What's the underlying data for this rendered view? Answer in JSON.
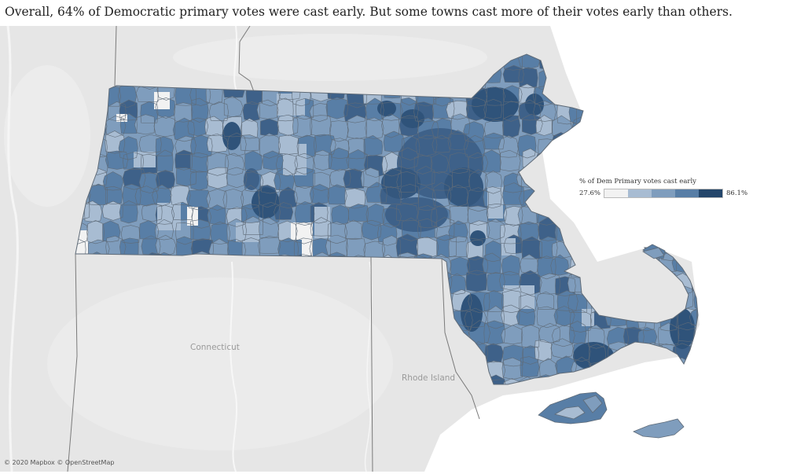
{
  "title": "Overall, 64% of Democratic primary votes were cast early. But some towns cast more of their votes early than others.",
  "legend": {
    "title": "% of Dem Primary votes cast early",
    "min_label": "27.6%",
    "max_label": "86.1%",
    "min_value": 27.6,
    "max_value": 86.1,
    "colors": [
      "#f2f2f2",
      "#a8bcd2",
      "#7f9dbd",
      "#587ea6",
      "#24466b"
    ]
  },
  "places": {
    "connecticut": "Connecticut",
    "rhode_island": "Rhode Island"
  },
  "attribution": "© 2020 Mapbox © OpenStreetMap",
  "colors": {
    "land": "#e6e6e6",
    "water": "#ffffff",
    "border": "#7a7a7a",
    "town_line": "#5f6b78"
  }
}
